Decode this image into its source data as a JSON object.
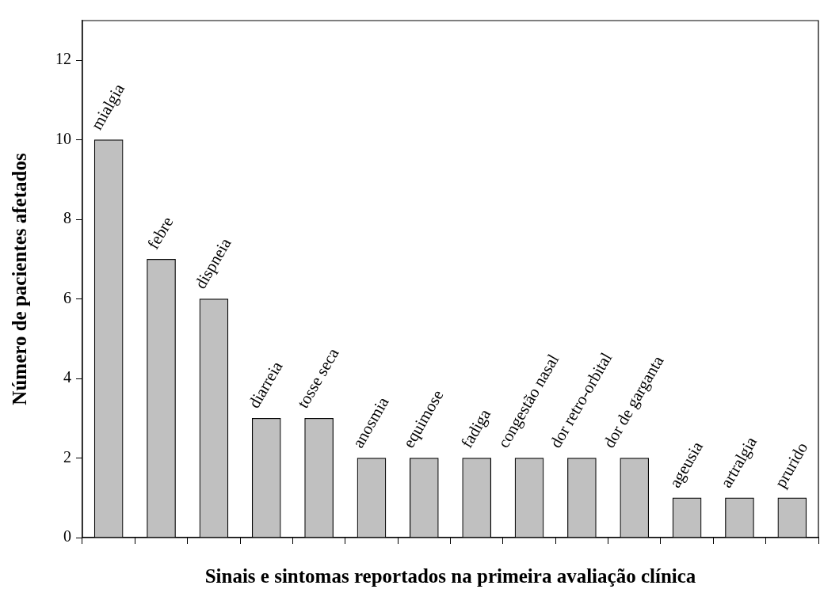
{
  "chart_data": {
    "type": "bar",
    "xlabel": "Sinais e sintomas reportados na primeira avaliação clínica",
    "ylabel": "Número de pacientes afetados",
    "categories": [
      "mialgia",
      "febre",
      "dispneia",
      "diarreia",
      "tosse seca",
      "anosmia",
      "equimose",
      "fadiga",
      "congestão nasal",
      "dor retro-orbital",
      "dor de garganta",
      "ageusia",
      "artralgia",
      "prurido"
    ],
    "values": [
      10,
      7,
      6,
      3,
      3,
      2,
      2,
      2,
      2,
      2,
      2,
      1,
      1,
      1
    ],
    "color": "#c0c0c0",
    "ylim": [
      0,
      13
    ],
    "yticks": [
      0,
      2,
      4,
      6,
      8,
      10,
      12
    ],
    "grid": false,
    "legend": false
  }
}
